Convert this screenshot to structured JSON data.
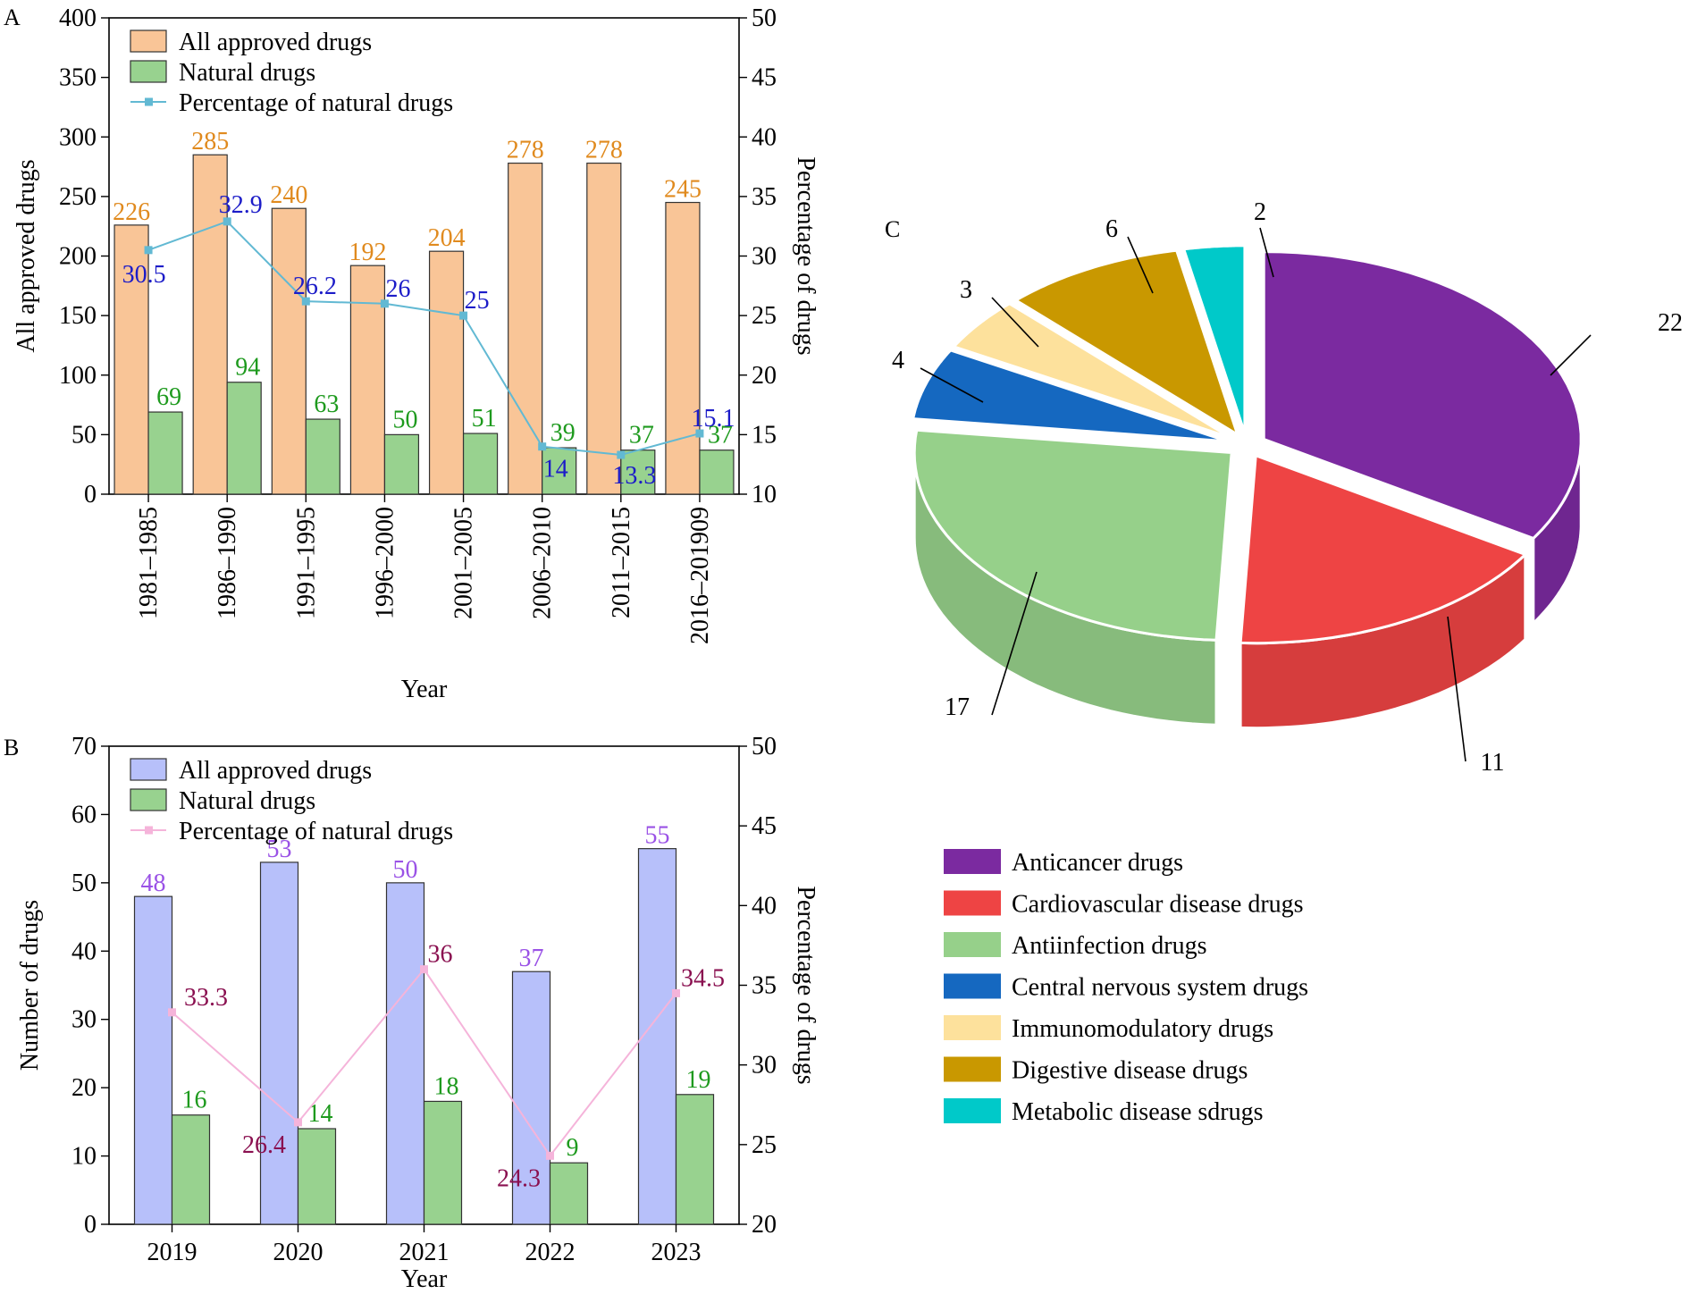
{
  "figure": {
    "colors": {
      "all_A": "#F9C597",
      "natural": "#98D28F",
      "pct_A_line": "#62B9D3",
      "all_B": "#B7C0FA",
      "pct_B_line": "#F5B4DA",
      "label_orange": "#E08A1E",
      "label_green": "#1E9A1E",
      "label_blue": "#1C1CC8",
      "label_violet": "#9A52E6",
      "label_maroon": "#8A1050"
    }
  },
  "chart_data": [
    {
      "panel": "A",
      "type": "bar",
      "categories": [
        "1981–1985",
        "1986–1990",
        "1991–1995",
        "1996–2000",
        "2001–2005",
        "2006–2010",
        "2011–2015",
        "2016–201909"
      ],
      "series": [
        {
          "name": "All approved drugs",
          "values": [
            226,
            285,
            240,
            192,
            204,
            278,
            278,
            245
          ]
        },
        {
          "name": "Natural drugs",
          "values": [
            69,
            94,
            63,
            50,
            51,
            39,
            37,
            37
          ]
        },
        {
          "name": "Percentage of natural drugs",
          "type": "line",
          "axis": "right",
          "values": [
            30.5,
            32.9,
            26.2,
            26,
            25,
            14,
            13.3,
            15.1
          ]
        }
      ],
      "xlabel": "Year",
      "ylabel": "All approved drugs",
      "y2label": "Percentage of drugs",
      "ylim": [
        0,
        400
      ],
      "y2lim": [
        10,
        50
      ],
      "yticks": [
        "0",
        "50",
        "100",
        "150",
        "200",
        "250",
        "300",
        "350",
        "400"
      ],
      "y2ticks": [
        "10",
        "15",
        "20",
        "25",
        "30",
        "35",
        "40",
        "45",
        "50"
      ],
      "legend_position": "top-left",
      "grid": false
    },
    {
      "panel": "B",
      "type": "bar",
      "categories": [
        "2019",
        "2020",
        "2021",
        "2022",
        "2023"
      ],
      "series": [
        {
          "name": "All approved drugs",
          "values": [
            48,
            53,
            50,
            37,
            55
          ]
        },
        {
          "name": "Natural drugs",
          "values": [
            16,
            14,
            18,
            9,
            19
          ]
        },
        {
          "name": "Percentage of natural drugs",
          "type": "line",
          "axis": "right",
          "values": [
            33.3,
            26.4,
            36,
            24.3,
            34.5
          ]
        }
      ],
      "xlabel": "Year",
      "ylabel": "Number of drugs",
      "y2label": "Percentage of drugs",
      "ylim": [
        0,
        70
      ],
      "y2lim": [
        20,
        50
      ],
      "yticks": [
        "0",
        "10",
        "20",
        "30",
        "40",
        "50",
        "60",
        "70"
      ],
      "y2ticks": [
        "20",
        "25",
        "30",
        "35",
        "40",
        "45",
        "50"
      ],
      "legend_position": "top-left",
      "grid": false
    },
    {
      "panel": "C",
      "type": "pie",
      "slices": [
        {
          "name": "Anticancer drugs",
          "value": 22,
          "color": "#7B2AA0"
        },
        {
          "name": "Cardiovascular disease drugs",
          "value": 11,
          "color": "#EE4444"
        },
        {
          "name": "Antiinfection drugs",
          "value": 17,
          "color": "#96D08A"
        },
        {
          "name": "Central nervous system drugs",
          "value": 4,
          "color": "#1568C0"
        },
        {
          "name": "Immunomodulatory drugs",
          "value": 3,
          "color": "#FDE19C"
        },
        {
          "name": "Digestive disease drugs",
          "value": 6,
          "color": "#C99800"
        },
        {
          "name": "Metabolic disease sdrugs",
          "value": 2,
          "color": "#00C9C9"
        }
      ],
      "legend_position": "bottom",
      "exploded": true,
      "three_d": true
    }
  ]
}
